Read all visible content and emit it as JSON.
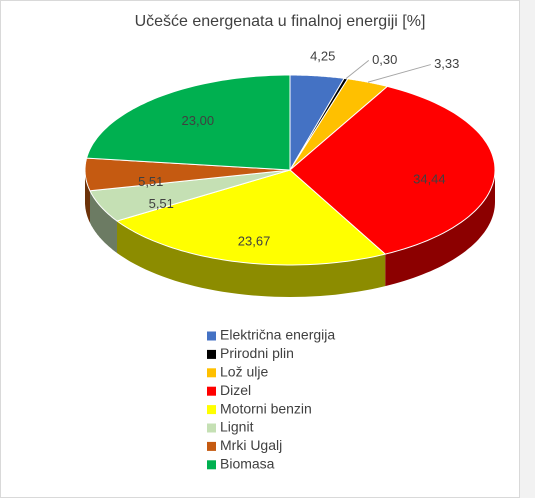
{
  "chart_data": {
    "type": "pie",
    "title": "Učešće energenata u finalnoj energiji [%]",
    "categories": [
      "Električna energija",
      "Prirodni plin",
      "Lož ulje",
      "Dizel",
      "Motorni benzin",
      "Lignit",
      "Mrki Ugalj",
      "Biomasa"
    ],
    "values": [
      4.25,
      0.3,
      3.33,
      34.44,
      23.67,
      5.51,
      5.51,
      23.0
    ],
    "value_labels": [
      "4,25",
      "0,30",
      "3,33",
      "34,44",
      "23,67",
      "5,51",
      "5,51",
      "23,00"
    ],
    "colors": [
      "#4472c4",
      "#000000",
      "#ffc000",
      "#ff0000",
      "#ffff00",
      "#c5e0b4",
      "#c55a11",
      "#00b050"
    ],
    "legend": "bottom"
  }
}
